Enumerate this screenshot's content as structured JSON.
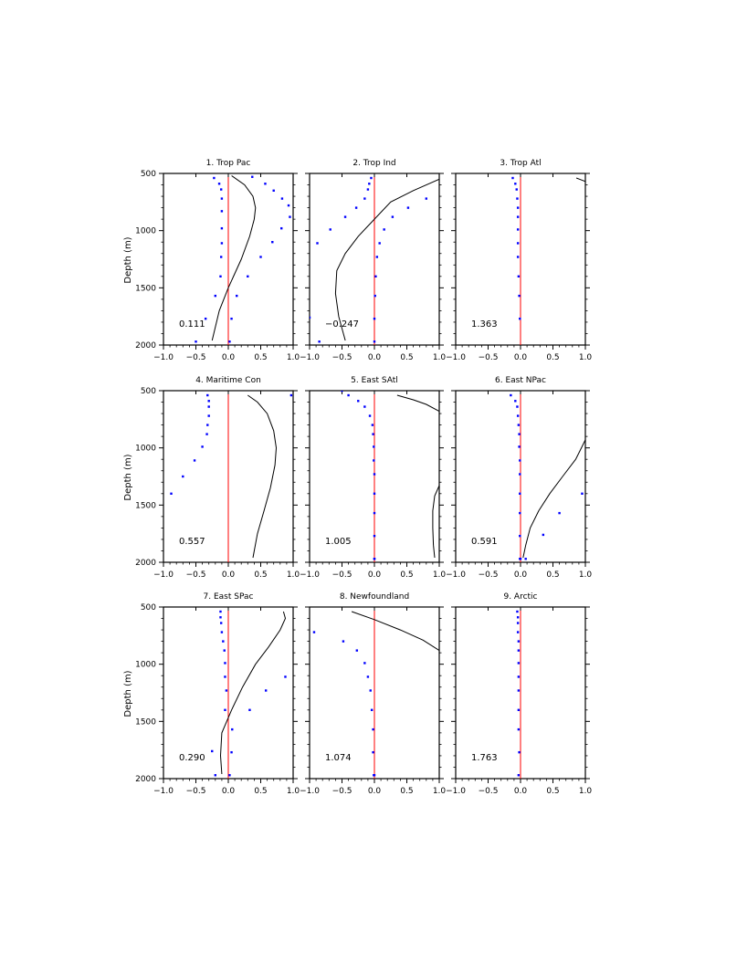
{
  "figure": {
    "ylabel": "Depth (m)",
    "colors": {
      "frame": "#000000",
      "zero_line": "#ff0000",
      "profile_line": "#000000",
      "dots": "#0000ff"
    }
  },
  "chart_data": [
    {
      "type": "line",
      "title": "1. Trop Pac",
      "value_label": "0.111",
      "xlim": [
        -1.0,
        1.0
      ],
      "ylim": [
        2000,
        500
      ],
      "y_inverted": true,
      "xticks": [
        "−1.0",
        "−0.5",
        "0.0",
        "0.5",
        "1.0"
      ],
      "yticks": [
        "500",
        "1000",
        "1500",
        "2000"
      ],
      "line": {
        "x": [
          0.05,
          0.25,
          0.38,
          0.42,
          0.4,
          0.33,
          0.2,
          0.0,
          -0.14,
          -0.25
        ],
        "y": [
          520,
          600,
          700,
          800,
          900,
          1050,
          1250,
          1500,
          1700,
          1960
        ]
      },
      "dots": {
        "x": [
          -0.22,
          -0.14,
          -0.11,
          -0.1,
          -0.1,
          -0.1,
          -0.1,
          -0.11,
          -0.12,
          -0.2,
          -0.35,
          -0.5
        ],
        "y": [
          540,
          590,
          640,
          720,
          830,
          980,
          1110,
          1230,
          1400,
          1570,
          1770,
          1970
        ]
      },
      "dots2": {
        "x": [
          0.37,
          0.57,
          0.7,
          0.83,
          0.93,
          0.95,
          0.82,
          0.68,
          0.5,
          0.3,
          0.13,
          0.05,
          0.02
        ],
        "y": [
          530,
          590,
          650,
          720,
          780,
          880,
          980,
          1100,
          1230,
          1400,
          1570,
          1770,
          1970
        ]
      }
    },
    {
      "type": "line",
      "title": "2. Trop Ind",
      "value_label": "−0.247",
      "xlim": [
        -1.0,
        1.0
      ],
      "ylim": [
        2000,
        500
      ],
      "y_inverted": true,
      "xticks": [
        "−1.0",
        "−0.5",
        "0.0",
        "0.5",
        "1.0"
      ],
      "yticks": [],
      "line": {
        "x": [
          1.0,
          0.6,
          0.25,
          0.0,
          -0.25,
          -0.45,
          -0.58,
          -0.6,
          -0.55,
          -0.45
        ],
        "y": [
          550,
          650,
          750,
          900,
          1050,
          1200,
          1350,
          1550,
          1750,
          1960
        ]
      },
      "dots": {
        "x": [
          -0.05,
          -0.08,
          -0.1,
          -0.15,
          -0.28,
          -0.45,
          -0.68,
          -0.88,
          -1.0,
          -0.85
        ],
        "y": [
          540,
          590,
          640,
          720,
          800,
          880,
          990,
          1110,
          1760,
          1970
        ]
      },
      "dots2": {
        "x": [
          0.8,
          0.52,
          0.28,
          0.15,
          0.08,
          0.04,
          0.02,
          0.01,
          0.0,
          0.0
        ],
        "y": [
          720,
          800,
          880,
          990,
          1110,
          1230,
          1400,
          1570,
          1770,
          1970
        ]
      }
    },
    {
      "type": "line",
      "title": "3. Trop Atl",
      "value_label": "1.363",
      "xlim": [
        -1.0,
        1.0
      ],
      "ylim": [
        2000,
        500
      ],
      "y_inverted": true,
      "xticks": [
        "−1.0",
        "−0.5",
        "0.0",
        "0.5",
        "1.0"
      ],
      "yticks": [],
      "line": {
        "x": [
          0.86,
          1.0
        ],
        "y": [
          540,
          570
        ]
      },
      "dots": {
        "x": [
          -0.12,
          -0.08,
          -0.06,
          -0.05,
          -0.04,
          -0.04,
          -0.04,
          -0.04,
          -0.04,
          -0.03,
          -0.02,
          -0.01
        ],
        "y": [
          540,
          590,
          640,
          720,
          800,
          880,
          990,
          1110,
          1230,
          1400,
          1570,
          1770
        ]
      },
      "dots2": {
        "x": [],
        "y": []
      }
    },
    {
      "type": "line",
      "title": "4. Maritime Con",
      "value_label": "0.557",
      "xlim": [
        -1.0,
        1.0
      ],
      "ylim": [
        2000,
        500
      ],
      "y_inverted": true,
      "xticks": [
        "−1.0",
        "−0.5",
        "0.0",
        "0.5",
        "1.0"
      ],
      "yticks": [
        "500",
        "1000",
        "1500",
        "2000"
      ],
      "line": {
        "x": [
          0.3,
          0.45,
          0.6,
          0.7,
          0.74,
          0.72,
          0.65,
          0.55,
          0.45,
          0.38
        ],
        "y": [
          540,
          600,
          700,
          850,
          1000,
          1150,
          1350,
          1550,
          1750,
          1960
        ]
      },
      "dots": {
        "x": [
          -0.32,
          -0.3,
          -0.3,
          -0.3,
          -0.32,
          -0.33,
          -0.4,
          -0.52,
          -0.7,
          -0.88
        ],
        "y": [
          540,
          590,
          640,
          720,
          800,
          880,
          990,
          1110,
          1250,
          1400
        ]
      },
      "dots2": {
        "x": [
          0.97
        ],
        "y": [
          540
        ]
      }
    },
    {
      "type": "line",
      "title": "5. East SAtl",
      "value_label": "1.005",
      "xlim": [
        -1.0,
        1.0
      ],
      "ylim": [
        2000,
        500
      ],
      "y_inverted": true,
      "xticks": [
        "−1.0",
        "−0.5",
        "0.0",
        "0.5",
        "1.0"
      ],
      "yticks": [],
      "line": {
        "x": [
          0.35,
          0.6,
          0.8,
          1.0
        ],
        "y": [
          540,
          580,
          620,
          680
        ]
      },
      "line2": {
        "x": [
          1.0,
          0.93,
          0.9,
          0.9,
          0.91,
          0.93
        ],
        "y": [
          1330,
          1420,
          1550,
          1700,
          1850,
          1960
        ]
      },
      "dots": {
        "x": [
          -0.5,
          -0.4,
          -0.25,
          -0.15,
          -0.07,
          -0.03,
          -0.02,
          -0.01,
          -0.01,
          0.0,
          0.0,
          0.0,
          0.0,
          0.0,
          0.0
        ],
        "y": [
          500,
          540,
          590,
          640,
          720,
          800,
          880,
          990,
          1110,
          1230,
          1400,
          1570,
          1770,
          1970,
          1970
        ]
      },
      "dots2": {
        "x": [],
        "y": []
      }
    },
    {
      "type": "line",
      "title": "6. East NPac",
      "value_label": "0.591",
      "xlim": [
        -1.0,
        1.0
      ],
      "ylim": [
        2000,
        500
      ],
      "y_inverted": true,
      "xticks": [
        "−1.0",
        "−0.5",
        "0.0",
        "0.5",
        "1.0"
      ],
      "yticks": [],
      "line": {
        "x": [
          1.0,
          0.85,
          0.65,
          0.45,
          0.28,
          0.15,
          0.08,
          0.04
        ],
        "y": [
          930,
          1100,
          1250,
          1400,
          1550,
          1700,
          1850,
          1960
        ]
      },
      "dots": {
        "x": [
          -0.15,
          -0.08,
          -0.05,
          -0.04,
          -0.03,
          -0.02,
          -0.02,
          -0.01,
          -0.01,
          -0.01,
          -0.01,
          -0.01,
          -0.01,
          0.0
        ],
        "y": [
          540,
          590,
          640,
          720,
          800,
          880,
          990,
          1110,
          1230,
          1400,
          1570,
          1770,
          1970,
          1970
        ]
      },
      "dots2": {
        "x": [
          0.95,
          0.6,
          0.35,
          0.08
        ],
        "y": [
          1400,
          1570,
          1760,
          1970
        ]
      }
    },
    {
      "type": "line",
      "title": "7. East SPac",
      "value_label": "0.290",
      "xlim": [
        -1.0,
        1.0
      ],
      "ylim": [
        2000,
        500
      ],
      "y_inverted": true,
      "xticks": [
        "−1.0",
        "−0.5",
        "0.0",
        "0.5",
        "1.0"
      ],
      "yticks": [
        "500",
        "1000",
        "1500",
        "2000"
      ],
      "line": {
        "x": [
          0.85,
          0.88,
          0.8,
          0.62,
          0.42,
          0.22,
          0.05,
          -0.1,
          -0.12,
          -0.1
        ],
        "y": [
          540,
          600,
          700,
          850,
          1000,
          1200,
          1400,
          1600,
          1800,
          1960
        ]
      },
      "dots": {
        "x": [
          -0.12,
          -0.12,
          -0.11,
          -0.1,
          -0.08,
          -0.06,
          -0.05,
          -0.05,
          -0.03,
          -0.05,
          -0.25,
          -0.2
        ],
        "y": [
          540,
          590,
          640,
          720,
          800,
          880,
          990,
          1110,
          1230,
          1400,
          1760,
          1970
        ]
      },
      "dots2": {
        "x": [
          0.88,
          0.58,
          0.33,
          0.06,
          0.05,
          0.02
        ],
        "y": [
          1110,
          1230,
          1400,
          1570,
          1770,
          1970
        ]
      }
    },
    {
      "type": "line",
      "title": "8. Newfoundland",
      "value_label": "1.074",
      "xlim": [
        -1.0,
        1.0
      ],
      "ylim": [
        2000,
        500
      ],
      "y_inverted": true,
      "xticks": [
        "−1.0",
        "−0.5",
        "0.0",
        "0.5",
        "1.0"
      ],
      "yticks": [],
      "line": {
        "x": [
          -0.35,
          0.0,
          0.4,
          0.75,
          1.0
        ],
        "y": [
          540,
          610,
          700,
          790,
          880
        ]
      },
      "dots": {
        "x": [
          -0.93,
          -0.48,
          -0.27,
          -0.15,
          -0.1,
          -0.06,
          -0.04,
          -0.02,
          -0.02,
          -0.01,
          0.0
        ],
        "y": [
          720,
          800,
          880,
          990,
          1110,
          1230,
          1400,
          1570,
          1770,
          1970,
          1970
        ]
      },
      "dots2": {
        "x": [],
        "y": []
      }
    },
    {
      "type": "line",
      "title": "9. Arctic",
      "value_label": "1.763",
      "xlim": [
        -1.0,
        1.0
      ],
      "ylim": [
        2000,
        500
      ],
      "y_inverted": true,
      "xticks": [
        "−1.0",
        "−0.5",
        "0.0",
        "0.5",
        "1.0"
      ],
      "yticks": [],
      "line": {
        "x": [],
        "y": []
      },
      "dots": {
        "x": [
          -0.05,
          -0.04,
          -0.04,
          -0.04,
          -0.03,
          -0.03,
          -0.03,
          -0.03,
          -0.03,
          -0.03,
          -0.03,
          -0.02,
          -0.03
        ],
        "y": [
          540,
          590,
          640,
          720,
          800,
          880,
          990,
          1110,
          1230,
          1400,
          1570,
          1770,
          1970
        ]
      },
      "dots2": {
        "x": [],
        "y": []
      }
    }
  ]
}
